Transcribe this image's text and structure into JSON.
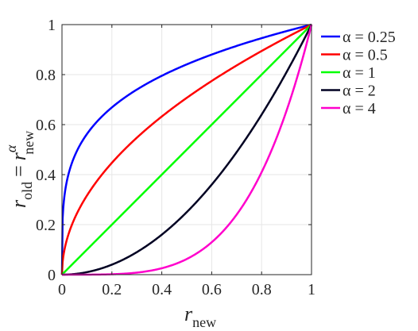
{
  "chart_data": {
    "type": "line",
    "title": "",
    "xlabel": {
      "base": "r",
      "sub": "new"
    },
    "ylabel": {
      "base": "r",
      "sub": "old",
      "equals": "=",
      "rhs_base": "r",
      "rhs_sub": "new",
      "rhs_sup": "α"
    },
    "xlim": [
      0,
      1
    ],
    "ylim": [
      0,
      1
    ],
    "xticks": [
      0,
      0.2,
      0.4,
      0.6,
      0.8,
      1
    ],
    "xtick_labels": [
      "0",
      "0.2",
      "0.4",
      "0.6",
      "0.8",
      "1"
    ],
    "yticks": [
      0,
      0.2,
      0.4,
      0.6,
      0.8,
      1
    ],
    "ytick_labels": [
      "0",
      "0.2",
      "0.4",
      "0.6",
      "0.8",
      "1"
    ],
    "grid": true,
    "legend_position": "outside-right-top",
    "x": [
      0,
      0.05,
      0.1,
      0.15,
      0.2,
      0.25,
      0.3,
      0.35,
      0.4,
      0.45,
      0.5,
      0.55,
      0.6,
      0.65,
      0.7,
      0.75,
      0.8,
      0.85,
      0.9,
      0.95,
      1
    ],
    "series": [
      {
        "name": "α = 0.25",
        "alpha": 0.25,
        "color": "#0000FF",
        "values": [
          0,
          0.473,
          0.562,
          0.622,
          0.669,
          0.707,
          0.74,
          0.769,
          0.795,
          0.819,
          0.841,
          0.861,
          0.88,
          0.898,
          0.915,
          0.931,
          0.946,
          0.96,
          0.974,
          0.987,
          1
        ]
      },
      {
        "name": "α = 0.5",
        "alpha": 0.5,
        "color": "#FF0000",
        "values": [
          0,
          0.224,
          0.316,
          0.387,
          0.447,
          0.5,
          0.548,
          0.592,
          0.632,
          0.671,
          0.707,
          0.742,
          0.775,
          0.806,
          0.837,
          0.866,
          0.894,
          0.922,
          0.949,
          0.975,
          1
        ]
      },
      {
        "name": "α = 1",
        "alpha": 1,
        "color": "#00FF00",
        "values": [
          0,
          0.05,
          0.1,
          0.15,
          0.2,
          0.25,
          0.3,
          0.35,
          0.4,
          0.45,
          0.5,
          0.55,
          0.6,
          0.65,
          0.7,
          0.75,
          0.8,
          0.85,
          0.9,
          0.95,
          1
        ]
      },
      {
        "name": "α = 2",
        "alpha": 2,
        "color": "#000022",
        "values": [
          0,
          0.003,
          0.01,
          0.023,
          0.04,
          0.063,
          0.09,
          0.123,
          0.16,
          0.203,
          0.25,
          0.303,
          0.36,
          0.423,
          0.49,
          0.563,
          0.64,
          0.723,
          0.81,
          0.903,
          1
        ]
      },
      {
        "name": "α = 4",
        "alpha": 4,
        "color": "#FF00CC",
        "values": [
          0,
          6.3e-06,
          0.0001,
          0.0005,
          0.0016,
          0.0039,
          0.0081,
          0.015,
          0.0256,
          0.041,
          0.0625,
          0.0915,
          0.1296,
          0.1785,
          0.2401,
          0.3164,
          0.4096,
          0.522,
          0.6561,
          0.8145,
          1
        ]
      }
    ]
  }
}
